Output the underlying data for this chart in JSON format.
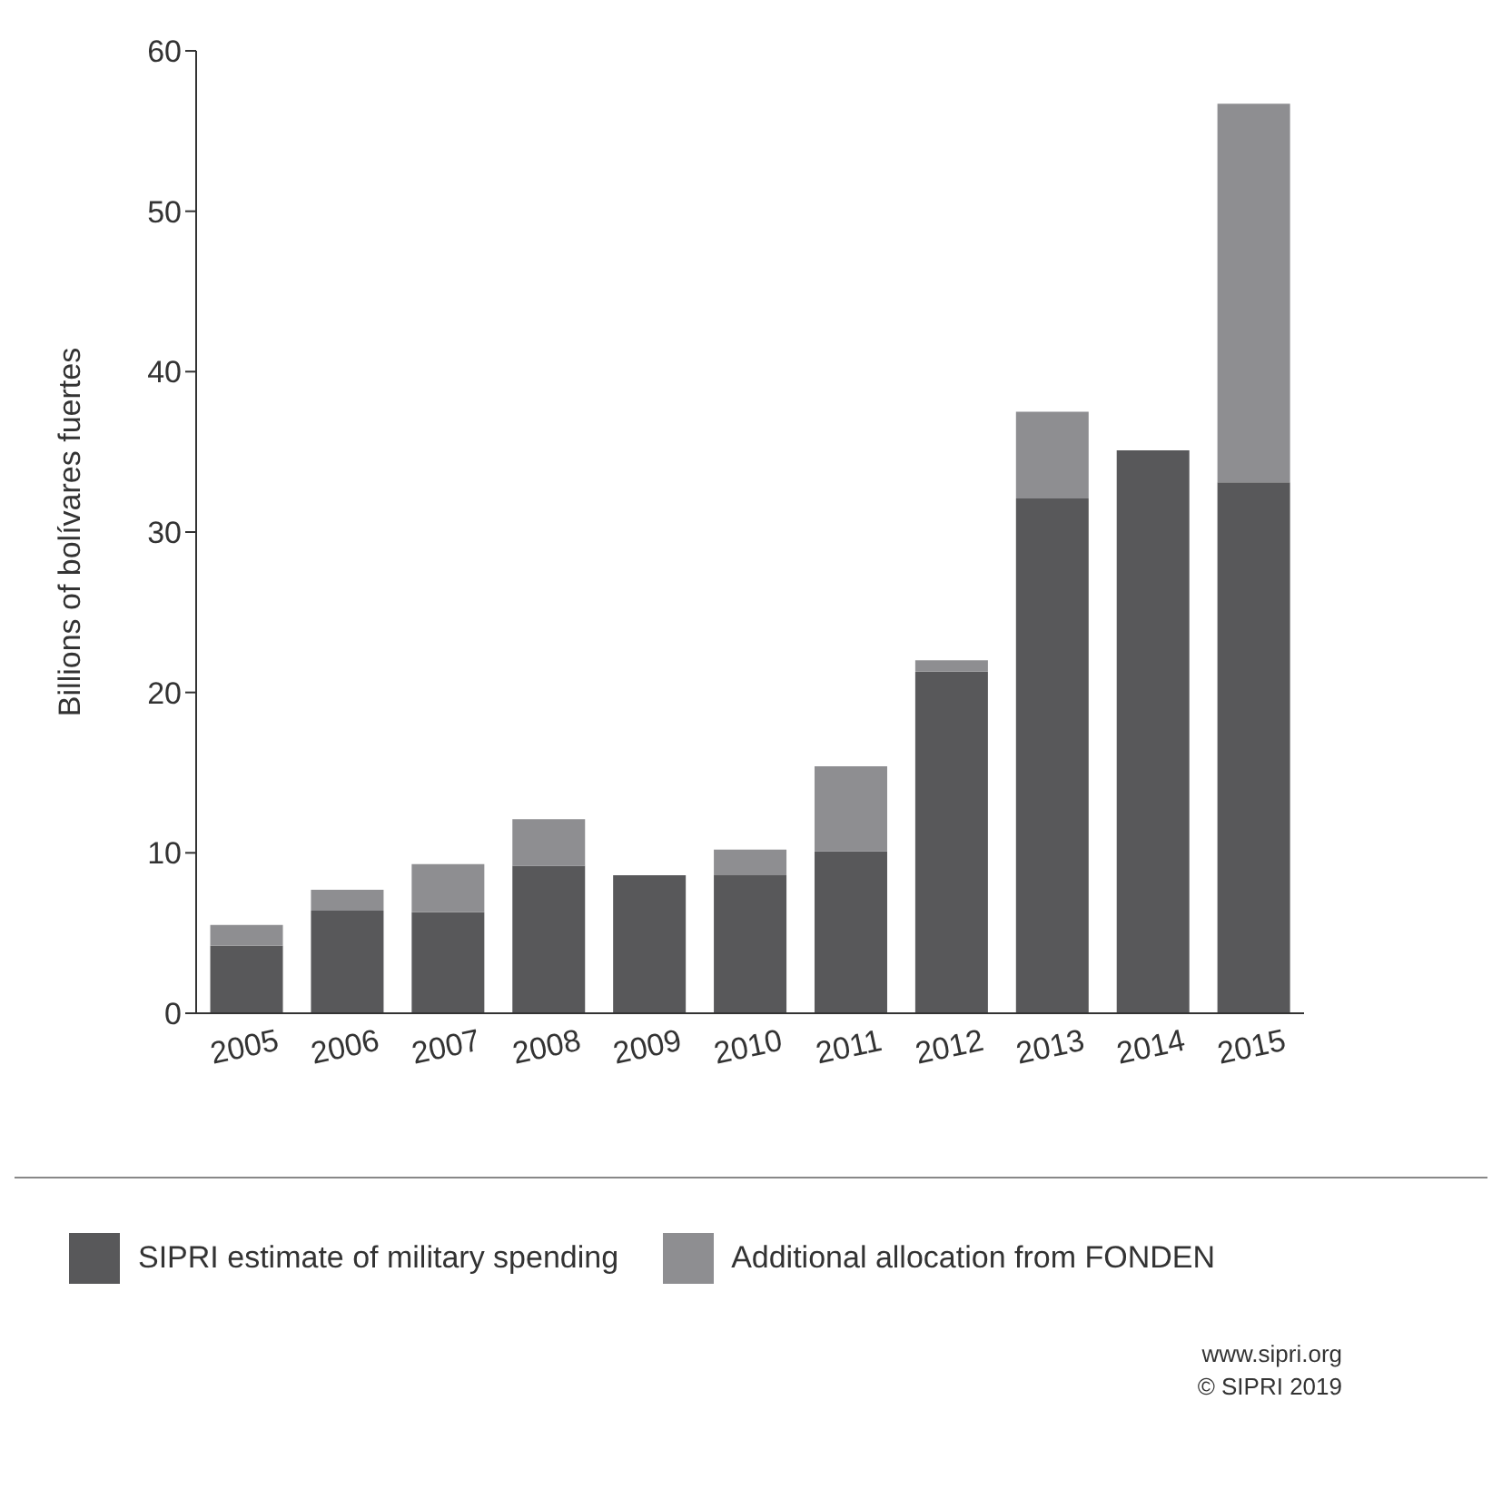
{
  "chart_data": {
    "type": "bar",
    "ylabel": "Billions of bolívares fuertes",
    "categories": [
      "2005",
      "2006",
      "2007",
      "2008",
      "2009",
      "2010",
      "2011",
      "2012",
      "2013",
      "2014",
      "2015"
    ],
    "series": [
      {
        "name": "SIPRI estimate of military spending",
        "color": "#58585a",
        "values": [
          4.2,
          6.4,
          6.3,
          9.2,
          8.6,
          8.6,
          10.1,
          21.3,
          32.1,
          35.1,
          33.1
        ]
      },
      {
        "name": "Additional allocation from FONDEN",
        "color": "#8e8e91",
        "values": [
          1.3,
          1.3,
          3.0,
          2.9,
          0,
          1.6,
          5.3,
          0.7,
          5.4,
          0,
          23.6
        ]
      }
    ],
    "stacked": true,
    "ylim": [
      0,
      60
    ],
    "yticks": [
      0,
      10,
      20,
      30,
      40,
      50,
      60
    ],
    "grid": false,
    "legend": "bottom",
    "annotations": [
      "www.sipri.org",
      "© SIPRI 2019"
    ]
  }
}
